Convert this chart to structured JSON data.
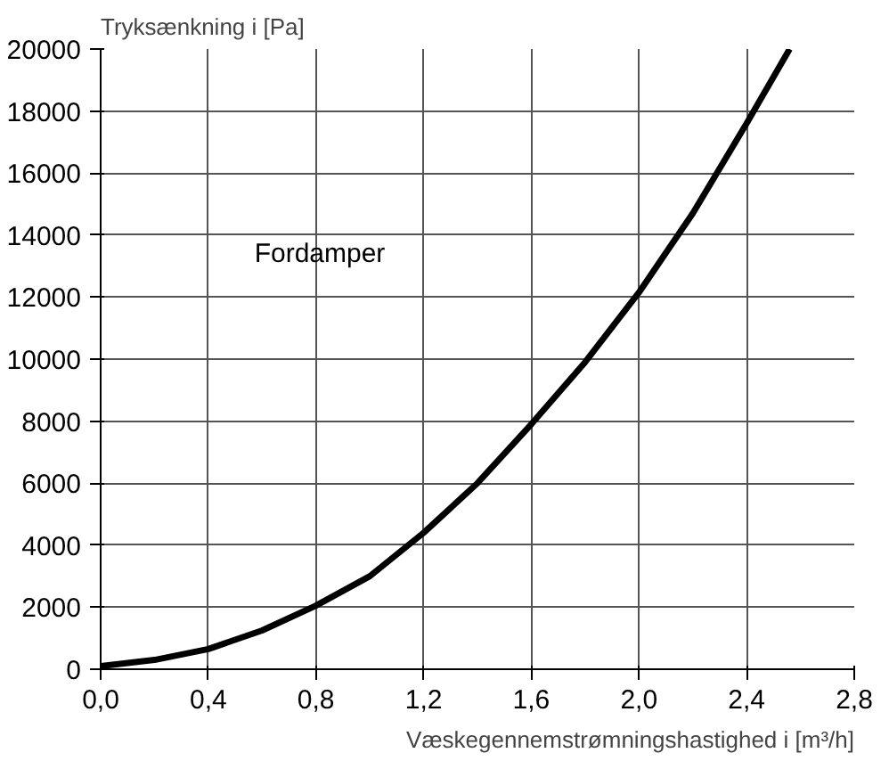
{
  "chart_data": {
    "type": "line",
    "xlabel": "Væskegennemstrømningshastighed i [m³/h]",
    "ylabel": "Tryksænkning i [Pa]",
    "x": [
      0,
      0.2,
      0.4,
      0.6,
      0.8,
      1.0,
      1.2,
      1.4,
      1.6,
      1.8,
      2.0,
      2.2,
      2.4,
      2.56
    ],
    "series": [
      {
        "color": "#000000",
        "values": [
          100,
          300,
          650,
          1250,
          2050,
          3000,
          4400,
          6000,
          7900,
          9900,
          12150,
          14700,
          17600,
          20000
        ]
      }
    ],
    "xlim": [
      0,
      2.8
    ],
    "xticks": [
      {
        "value": 0,
        "label": "0,0"
      },
      {
        "value": 0.4,
        "label": "0,4"
      },
      {
        "value": 0.8,
        "label": "0,8"
      },
      {
        "value": 1.2,
        "label": "1,2"
      },
      {
        "value": 1.6,
        "label": "1,6"
      },
      {
        "value": 2.0,
        "label": "2,0"
      },
      {
        "value": 2.4,
        "label": "2,4"
      },
      {
        "value": 2.8,
        "label": "2,8"
      }
    ],
    "ylim": [
      0,
      20000
    ],
    "yticks": [
      0,
      2000,
      4000,
      6000,
      8000,
      10000,
      12000,
      14000,
      16000,
      18000,
      20000
    ],
    "grid": true,
    "marker": "none",
    "line_style": "solid",
    "annotations": [
      "Fordamper"
    ]
  }
}
